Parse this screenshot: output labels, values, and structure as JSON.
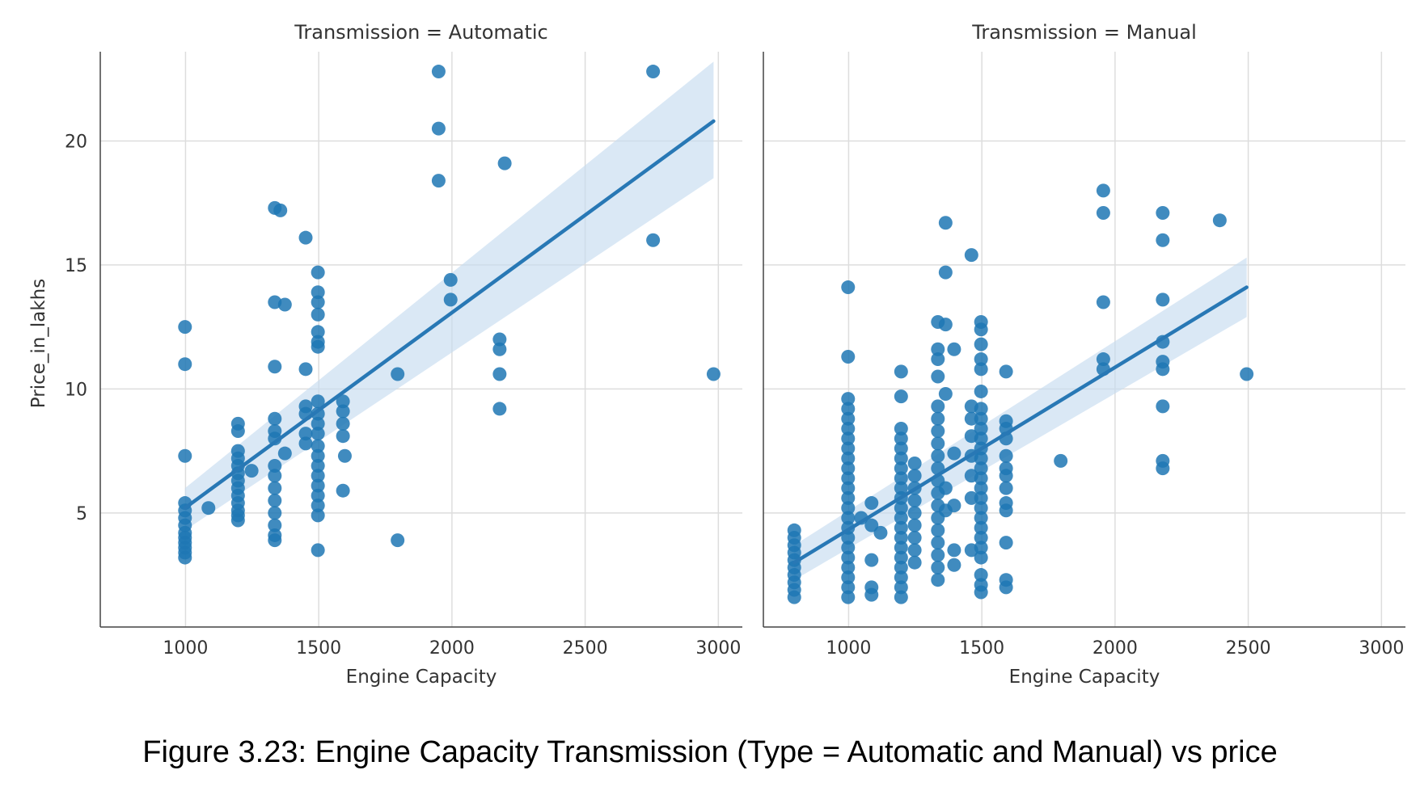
{
  "caption": "Figure 3.23: Engine Capacity Transmission (Type = Automatic and Manual) vs price",
  "colors": {
    "points": "#1f77b4",
    "line": "#2878b5",
    "band": "#c6dbef",
    "grid": "#dddddd",
    "axis": "#444444"
  },
  "chart_data": [
    {
      "type": "scatter",
      "title": "Transmission = Automatic",
      "xlabel": "Engine Capacity",
      "ylabel": "Price_in_lakhs",
      "xlim": [
        680,
        3090
      ],
      "ylim": [
        0.4,
        23.6
      ],
      "xticks": [
        1000,
        1500,
        2000,
        2500,
        3000
      ],
      "yticks": [
        5,
        10,
        15,
        20
      ],
      "grid": true,
      "points": [
        [
          998,
          3.2
        ],
        [
          998,
          3.4
        ],
        [
          998,
          3.6
        ],
        [
          998,
          3.8
        ],
        [
          998,
          4.0
        ],
        [
          998,
          4.2
        ],
        [
          998,
          4.5
        ],
        [
          998,
          4.8
        ],
        [
          998,
          5.1
        ],
        [
          998,
          5.4
        ],
        [
          998,
          7.3
        ],
        [
          998,
          11.0
        ],
        [
          998,
          12.5
        ],
        [
          1086,
          5.2
        ],
        [
          1197,
          4.7
        ],
        [
          1197,
          4.9
        ],
        [
          1197,
          5.1
        ],
        [
          1197,
          5.4
        ],
        [
          1197,
          5.7
        ],
        [
          1197,
          6.0
        ],
        [
          1197,
          6.3
        ],
        [
          1197,
          6.6
        ],
        [
          1197,
          6.9
        ],
        [
          1197,
          7.2
        ],
        [
          1197,
          7.5
        ],
        [
          1197,
          8.3
        ],
        [
          1197,
          8.6
        ],
        [
          1248,
          6.7
        ],
        [
          1335,
          3.9
        ],
        [
          1335,
          4.1
        ],
        [
          1335,
          4.5
        ],
        [
          1335,
          5.0
        ],
        [
          1335,
          5.5
        ],
        [
          1335,
          6.0
        ],
        [
          1335,
          6.5
        ],
        [
          1335,
          6.9
        ],
        [
          1335,
          8.0
        ],
        [
          1335,
          8.3
        ],
        [
          1335,
          8.8
        ],
        [
          1335,
          10.9
        ],
        [
          1335,
          13.5
        ],
        [
          1335,
          17.3
        ],
        [
          1356,
          17.2
        ],
        [
          1373,
          13.4
        ],
        [
          1373,
          7.4
        ],
        [
          1451,
          7.8
        ],
        [
          1451,
          8.2
        ],
        [
          1451,
          9.0
        ],
        [
          1451,
          9.3
        ],
        [
          1451,
          10.8
        ],
        [
          1451,
          16.1
        ],
        [
          1497,
          3.5
        ],
        [
          1497,
          4.9
        ],
        [
          1497,
          5.3
        ],
        [
          1497,
          5.7
        ],
        [
          1497,
          6.1
        ],
        [
          1497,
          6.5
        ],
        [
          1497,
          6.9
        ],
        [
          1497,
          7.3
        ],
        [
          1497,
          7.7
        ],
        [
          1497,
          8.2
        ],
        [
          1497,
          8.6
        ],
        [
          1497,
          9.0
        ],
        [
          1497,
          9.5
        ],
        [
          1497,
          11.7
        ],
        [
          1497,
          11.9
        ],
        [
          1497,
          12.3
        ],
        [
          1497,
          13.0
        ],
        [
          1497,
          13.5
        ],
        [
          1497,
          13.9
        ],
        [
          1497,
          14.7
        ],
        [
          1591,
          5.9
        ],
        [
          1591,
          8.1
        ],
        [
          1591,
          8.6
        ],
        [
          1591,
          9.1
        ],
        [
          1591,
          9.5
        ],
        [
          1598,
          7.3
        ],
        [
          1796,
          3.9
        ],
        [
          1796,
          10.6
        ],
        [
          1950,
          18.4
        ],
        [
          1950,
          20.5
        ],
        [
          1950,
          22.8
        ],
        [
          1995,
          13.6
        ],
        [
          1995,
          14.4
        ],
        [
          2179,
          9.2
        ],
        [
          2179,
          10.6
        ],
        [
          2179,
          11.6
        ],
        [
          2179,
          12.0
        ],
        [
          2198,
          19.1
        ],
        [
          2755,
          16.0
        ],
        [
          2755,
          22.8
        ],
        [
          2982,
          10.6
        ]
      ],
      "regression": {
        "x": [
          998,
          2982
        ],
        "y": [
          5.2,
          20.8
        ]
      },
      "ci_band": {
        "x": [
          998,
          2982
        ],
        "lower": [
          4.3,
          18.5
        ],
        "upper": [
          6.0,
          23.2
        ]
      }
    },
    {
      "type": "scatter",
      "title": "Transmission = Manual",
      "xlabel": "Engine Capacity",
      "ylabel": "",
      "xlim": [
        680,
        3090
      ],
      "ylim": [
        0.4,
        23.6
      ],
      "xticks": [
        1000,
        1500,
        2000,
        2500,
        3000
      ],
      "yticks": [
        5,
        10,
        15,
        20
      ],
      "grid": true,
      "points": [
        [
          796,
          1.6
        ],
        [
          796,
          1.9
        ],
        [
          796,
          2.2
        ],
        [
          796,
          2.5
        ],
        [
          796,
          2.8
        ],
        [
          796,
          3.1
        ],
        [
          796,
          3.4
        ],
        [
          796,
          3.7
        ],
        [
          796,
          4.0
        ],
        [
          796,
          4.3
        ],
        [
          998,
          1.6
        ],
        [
          998,
          2.0
        ],
        [
          998,
          2.4
        ],
        [
          998,
          2.8
        ],
        [
          998,
          3.2
        ],
        [
          998,
          3.6
        ],
        [
          998,
          4.0
        ],
        [
          998,
          4.4
        ],
        [
          998,
          4.8
        ],
        [
          998,
          5.2
        ],
        [
          998,
          5.6
        ],
        [
          998,
          6.0
        ],
        [
          998,
          6.4
        ],
        [
          998,
          6.8
        ],
        [
          998,
          7.2
        ],
        [
          998,
          7.6
        ],
        [
          998,
          8.0
        ],
        [
          998,
          8.4
        ],
        [
          998,
          8.8
        ],
        [
          998,
          9.2
        ],
        [
          998,
          9.6
        ],
        [
          998,
          11.3
        ],
        [
          998,
          14.1
        ],
        [
          1047,
          4.8
        ],
        [
          1086,
          1.7
        ],
        [
          1086,
          2.0
        ],
        [
          1086,
          3.1
        ],
        [
          1086,
          4.5
        ],
        [
          1086,
          5.4
        ],
        [
          1120,
          4.2
        ],
        [
          1197,
          1.6
        ],
        [
          1197,
          2.0
        ],
        [
          1197,
          2.4
        ],
        [
          1197,
          2.8
        ],
        [
          1197,
          3.2
        ],
        [
          1197,
          3.6
        ],
        [
          1197,
          4.0
        ],
        [
          1197,
          4.4
        ],
        [
          1197,
          4.8
        ],
        [
          1197,
          5.2
        ],
        [
          1197,
          5.6
        ],
        [
          1197,
          6.0
        ],
        [
          1197,
          6.4
        ],
        [
          1197,
          6.8
        ],
        [
          1197,
          7.2
        ],
        [
          1197,
          7.6
        ],
        [
          1197,
          8.0
        ],
        [
          1197,
          8.4
        ],
        [
          1197,
          9.7
        ],
        [
          1197,
          10.7
        ],
        [
          1248,
          3.0
        ],
        [
          1248,
          3.5
        ],
        [
          1248,
          4.0
        ],
        [
          1248,
          4.5
        ],
        [
          1248,
          5.0
        ],
        [
          1248,
          5.5
        ],
        [
          1248,
          6.0
        ],
        [
          1248,
          6.5
        ],
        [
          1248,
          7.0
        ],
        [
          1335,
          2.3
        ],
        [
          1335,
          2.8
        ],
        [
          1335,
          3.3
        ],
        [
          1335,
          3.8
        ],
        [
          1335,
          4.3
        ],
        [
          1335,
          4.8
        ],
        [
          1335,
          5.3
        ],
        [
          1335,
          5.8
        ],
        [
          1335,
          6.3
        ],
        [
          1335,
          6.8
        ],
        [
          1335,
          7.3
        ],
        [
          1335,
          7.8
        ],
        [
          1335,
          8.3
        ],
        [
          1335,
          8.8
        ],
        [
          1335,
          9.3
        ],
        [
          1335,
          10.5
        ],
        [
          1335,
          11.2
        ],
        [
          1335,
          11.6
        ],
        [
          1335,
          12.7
        ],
        [
          1364,
          5.1
        ],
        [
          1364,
          6.0
        ],
        [
          1364,
          9.8
        ],
        [
          1364,
          12.6
        ],
        [
          1364,
          14.7
        ],
        [
          1364,
          16.7
        ],
        [
          1396,
          2.9
        ],
        [
          1396,
          3.5
        ],
        [
          1396,
          5.3
        ],
        [
          1396,
          7.4
        ],
        [
          1396,
          11.6
        ],
        [
          1461,
          3.5
        ],
        [
          1461,
          5.6
        ],
        [
          1461,
          6.5
        ],
        [
          1461,
          7.3
        ],
        [
          1461,
          8.1
        ],
        [
          1461,
          8.8
        ],
        [
          1461,
          9.3
        ],
        [
          1461,
          15.4
        ],
        [
          1497,
          1.8
        ],
        [
          1497,
          2.1
        ],
        [
          1497,
          2.5
        ],
        [
          1497,
          3.2
        ],
        [
          1497,
          3.6
        ],
        [
          1497,
          4.0
        ],
        [
          1497,
          4.4
        ],
        [
          1497,
          4.8
        ],
        [
          1497,
          5.2
        ],
        [
          1497,
          5.6
        ],
        [
          1497,
          6.0
        ],
        [
          1497,
          6.4
        ],
        [
          1497,
          6.8
        ],
        [
          1497,
          7.2
        ],
        [
          1497,
          7.6
        ],
        [
          1497,
          8.0
        ],
        [
          1497,
          8.4
        ],
        [
          1497,
          8.8
        ],
        [
          1497,
          9.2
        ],
        [
          1497,
          9.9
        ],
        [
          1497,
          10.8
        ],
        [
          1497,
          11.2
        ],
        [
          1497,
          11.8
        ],
        [
          1497,
          12.4
        ],
        [
          1497,
          12.7
        ],
        [
          1591,
          2.0
        ],
        [
          1591,
          2.3
        ],
        [
          1591,
          3.8
        ],
        [
          1591,
          5.1
        ],
        [
          1591,
          5.4
        ],
        [
          1591,
          6.0
        ],
        [
          1591,
          6.5
        ],
        [
          1591,
          6.8
        ],
        [
          1591,
          7.3
        ],
        [
          1591,
          8.0
        ],
        [
          1591,
          8.4
        ],
        [
          1591,
          8.7
        ],
        [
          1591,
          10.7
        ],
        [
          1796,
          7.1
        ],
        [
          1956,
          10.8
        ],
        [
          1956,
          11.2
        ],
        [
          1956,
          13.5
        ],
        [
          1956,
          17.1
        ],
        [
          1956,
          18.0
        ],
        [
          2179,
          6.8
        ],
        [
          2179,
          7.1
        ],
        [
          2179,
          9.3
        ],
        [
          2179,
          10.8
        ],
        [
          2179,
          11.1
        ],
        [
          2179,
          11.9
        ],
        [
          2179,
          13.6
        ],
        [
          2179,
          16.0
        ],
        [
          2179,
          17.1
        ],
        [
          2393,
          16.8
        ],
        [
          2494,
          10.6
        ]
      ],
      "regression": {
        "x": [
          796,
          2494
        ],
        "y": [
          3.0,
          14.1
        ]
      },
      "ci_band": {
        "x": [
          796,
          2494
        ],
        "lower": [
          2.3,
          12.9
        ],
        "upper": [
          3.7,
          15.3
        ]
      }
    }
  ]
}
